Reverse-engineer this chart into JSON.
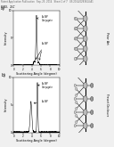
{
  "background_color": "#f0f0f0",
  "header_text": "Patent Application Publication   Sep. 25, 2014   Sheet 1 of 7   US 2014/0283614 A1",
  "fig_label": "FIG. 1C",
  "panel_a_label": "a)",
  "panel_b_label": "b)",
  "right_label_a": "Prior Art",
  "right_label_b": "Present Disclosure",
  "right_bar_color_a": "#c8c8c8",
  "right_bar_color_b": "#c8c8c8",
  "plot_bg": "#ffffff",
  "header_fontsize": 1.8,
  "fig_label_fontsize": 3.2,
  "axis_fontsize": 2.5,
  "tick_fontsize": 2.0,
  "annotation_fontsize": 1.8,
  "panel_label_fontsize": 3.5
}
